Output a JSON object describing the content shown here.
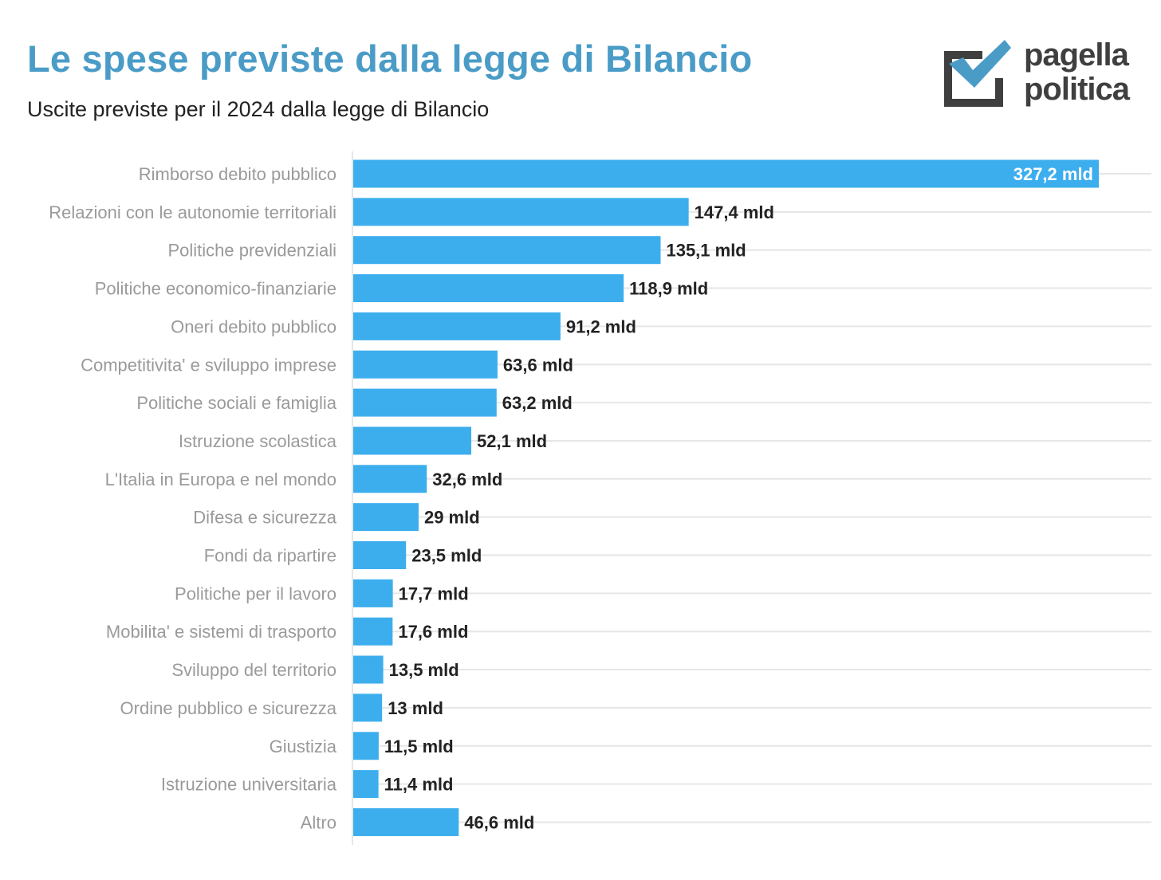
{
  "header": {
    "title": "Le spese previste dalla legge di Bilancio",
    "subtitle": "Uscite previste per il 2024 dalla legge di Bilancio"
  },
  "logo": {
    "line1": "pagella",
    "line2": "politica",
    "icon": "checkbox-check-icon",
    "colors": {
      "box": "#3f3f3f",
      "check": "#4a9cc7"
    }
  },
  "colors": {
    "title": "#4a9cc7",
    "bar": "#3daeed",
    "label_outside": "#222222",
    "label_inside": "#ffffff",
    "category_text": "#9a9a9a",
    "grid": "#e6e6e6"
  },
  "chart_data": {
    "type": "bar",
    "orientation": "horizontal",
    "title": "Le spese previste dalla legge di Bilancio",
    "subtitle": "Uscite previste per il 2024 dalla legge di Bilancio",
    "xlabel": "",
    "ylabel": "",
    "grid": true,
    "legend": "none",
    "categories": [
      "Rimborso debito pubblico",
      "Relazioni con le autonomie territoriali",
      "Politiche previdenziali",
      "Politiche economico-finanziarie",
      "Oneri debito pubblico",
      "Competitivita' e sviluppo imprese",
      "Politiche sociali e famiglia",
      "Istruzione scolastica",
      "L'Italia in Europa e nel mondo",
      "Difesa e sicurezza",
      "Fondi da ripartire",
      "Politiche per il lavoro",
      "Mobilita' e sistemi di trasporto",
      "Sviluppo del territorio",
      "Ordine pubblico e sicurezza",
      "Giustizia",
      "Istruzione universitaria",
      "Altro"
    ],
    "values": [
      327.2,
      147.4,
      135.1,
      118.9,
      91.2,
      63.6,
      63.2,
      52.1,
      32.6,
      29,
      23.5,
      17.7,
      17.6,
      13.5,
      13,
      11.5,
      11.4,
      46.6
    ],
    "data_labels": [
      "327,2 mld",
      "147,4 mld",
      "135,1 mld",
      "118,9 mld",
      "91,2 mld",
      "63,6 mld",
      "63,2 mld",
      "52,1 mld",
      "32,6 mld",
      "29 mld",
      "23,5 mld",
      "17,7 mld",
      "17,6 mld",
      "13,5 mld",
      "13 mld",
      "11,5 mld",
      "11,4 mld",
      "46,6 mld"
    ]
  }
}
